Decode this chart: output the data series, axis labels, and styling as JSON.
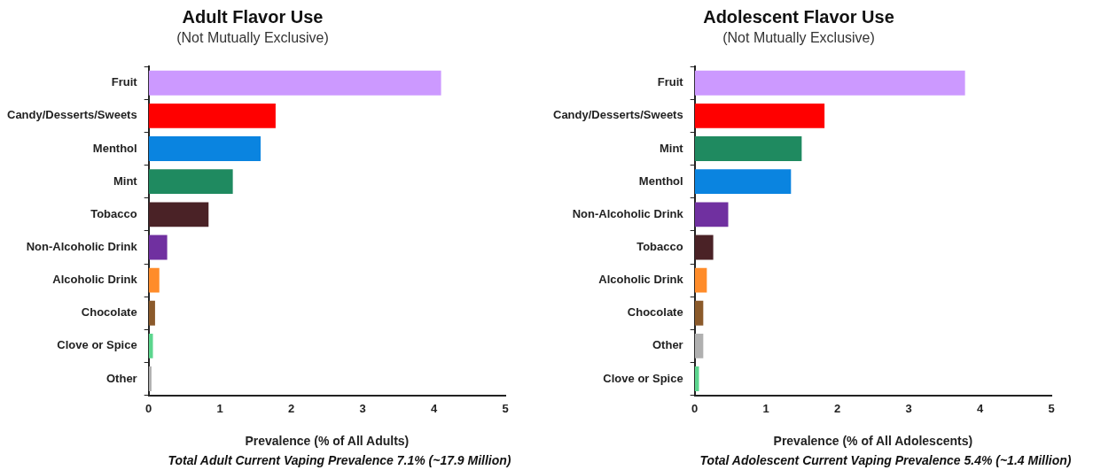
{
  "chart_data": [
    {
      "type": "bar",
      "orientation": "horizontal",
      "title": "Adult Flavor Use",
      "subtitle": "(Not Mutually Exclusive)",
      "xlabel": "Prevalence (% of All Adults)",
      "categories": [
        "Fruit",
        "Candy/Desserts/Sweets",
        "Menthol",
        "Mint",
        "Tobacco",
        "Non-Alcoholic Drink",
        "Alcoholic Drink",
        "Chocolate",
        "Clove or Spice",
        "Other"
      ],
      "values": [
        4.1,
        1.78,
        1.57,
        1.18,
        0.84,
        0.26,
        0.15,
        0.09,
        0.06,
        0.04
      ],
      "colors": [
        "#cc99ff",
        "#ff0000",
        "#0a84e0",
        "#1f8a60",
        "#4a2226",
        "#7030a0",
        "#ff8c2a",
        "#8b5a2b",
        "#5cd68e",
        "#b0b0b0"
      ],
      "xlim": [
        0,
        5
      ],
      "xticks": [
        0,
        1,
        2,
        3,
        4,
        5
      ],
      "grid": false,
      "annotations": [
        "Total Adult Current Vaping Prevalence 7.1% (~17.9 Million)"
      ]
    },
    {
      "type": "bar",
      "orientation": "horizontal",
      "title": "Adolescent Flavor Use",
      "subtitle": "(Not Mutually Exclusive)",
      "xlabel": "Prevalence (% of All Adolescents)",
      "categories": [
        "Fruit",
        "Candy/Desserts/Sweets",
        "Mint",
        "Menthol",
        "Non-Alcoholic Drink",
        "Tobacco",
        "Alcoholic Drink",
        "Chocolate",
        "Other",
        "Clove or Spice"
      ],
      "values": [
        3.79,
        1.82,
        1.5,
        1.35,
        0.47,
        0.26,
        0.17,
        0.12,
        0.12,
        0.06
      ],
      "colors": [
        "#cc99ff",
        "#ff0000",
        "#1f8a60",
        "#0a84e0",
        "#7030a0",
        "#4a2226",
        "#ff8c2a",
        "#8b5a2b",
        "#b0b0b0",
        "#5cd68e"
      ],
      "xlim": [
        0,
        5
      ],
      "xticks": [
        0,
        1,
        2,
        3,
        4,
        5
      ],
      "grid": false,
      "annotations": [
        "Total Adolescent Current Vaping Prevalence 5.4% (~1.4 Million)"
      ]
    }
  ]
}
